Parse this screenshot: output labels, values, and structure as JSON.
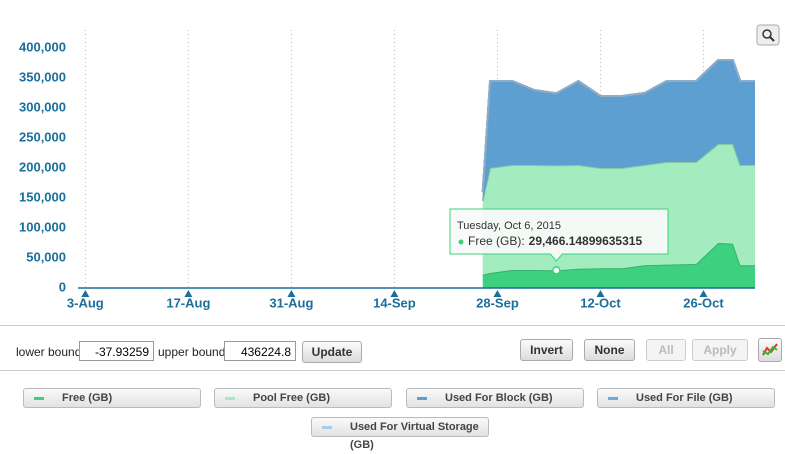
{
  "chart_data": {
    "type": "stacked-area",
    "x": [
      "2015-09-26",
      "2015-09-27",
      "2015-09-30",
      "2015-10-03",
      "2015-10-06",
      "2015-10-09",
      "2015-10-12",
      "2015-10-15",
      "2015-10-18",
      "2015-10-21",
      "2015-10-25",
      "2015-10-28",
      "2015-10-30",
      "2015-10-31",
      "2015-11-02"
    ],
    "series": [
      {
        "name": "Free (GB)",
        "color": "#3dd17f",
        "values": [
          22000,
          25000,
          30000,
          30000,
          29466.14899635315,
          32000,
          33000,
          33000,
          38000,
          39000,
          40000,
          75000,
          74000,
          38000,
          38000
        ]
      },
      {
        "name": "Pool Free (GB)",
        "color": "#a3ecc0",
        "values": [
          123000,
          175000,
          175000,
          175000,
          175000,
          173000,
          167000,
          167000,
          167000,
          171000,
          170000,
          165000,
          166000,
          167000,
          167000
        ]
      },
      {
        "name": "Used For Block (GB)",
        "color": "#5d9fd1",
        "values": [
          15000,
          145000,
          140000,
          125000,
          120000,
          140000,
          120000,
          120000,
          120000,
          135000,
          135000,
          140000,
          140000,
          140000,
          140000
        ]
      },
      {
        "name": "Used For File (GB)",
        "color": "#6aaae0",
        "values": [
          0,
          0,
          0,
          0,
          0,
          0,
          0,
          0,
          0,
          0,
          0,
          0,
          0,
          0,
          0
        ]
      },
      {
        "name": "Used For Virtual Storage (GB)",
        "color": "#a9cbeb",
        "values": [
          0,
          0,
          0,
          0,
          0,
          0,
          0,
          0,
          0,
          0,
          0,
          0,
          0,
          0,
          0
        ]
      }
    ],
    "xlim": [
      "2015-08-02",
      "2015-11-02"
    ],
    "xticks": [
      {
        "value": "2015-08-03",
        "label": "3-Aug"
      },
      {
        "value": "2015-08-17",
        "label": "17-Aug"
      },
      {
        "value": "2015-08-31",
        "label": "31-Aug"
      },
      {
        "value": "2015-09-14",
        "label": "14-Sep"
      },
      {
        "value": "2015-09-28",
        "label": "28-Sep"
      },
      {
        "value": "2015-10-12",
        "label": "12-Oct"
      },
      {
        "value": "2015-10-26",
        "label": "26-Oct"
      }
    ],
    "ylim": [
      0,
      430000
    ],
    "yticks": [
      0,
      {
        "value": 50000,
        "label": "50,000"
      },
      {
        "value": 100000,
        "label": "100,000"
      },
      {
        "value": 150000,
        "label": "150,000"
      },
      {
        "value": 200000,
        "label": "200,000"
      },
      {
        "value": 250000,
        "label": "250,000"
      },
      {
        "value": 300000,
        "label": "300,000"
      },
      {
        "value": 350000,
        "label": "350,000"
      },
      {
        "value": 400000,
        "label": "400,000"
      }
    ],
    "grid": true,
    "tooltip": {
      "title": "Tuesday, Oct 6, 2015",
      "label": "Free (GB):",
      "value_label": "29,466.14899635315"
    }
  },
  "controls": {
    "lower_label": "lower bound:",
    "lower_value": "-37.93259",
    "upper_label": "upper bound:",
    "upper_value": "436224.8",
    "update": "Update",
    "invert": "Invert",
    "none": "None",
    "all": "All",
    "apply": "Apply"
  }
}
